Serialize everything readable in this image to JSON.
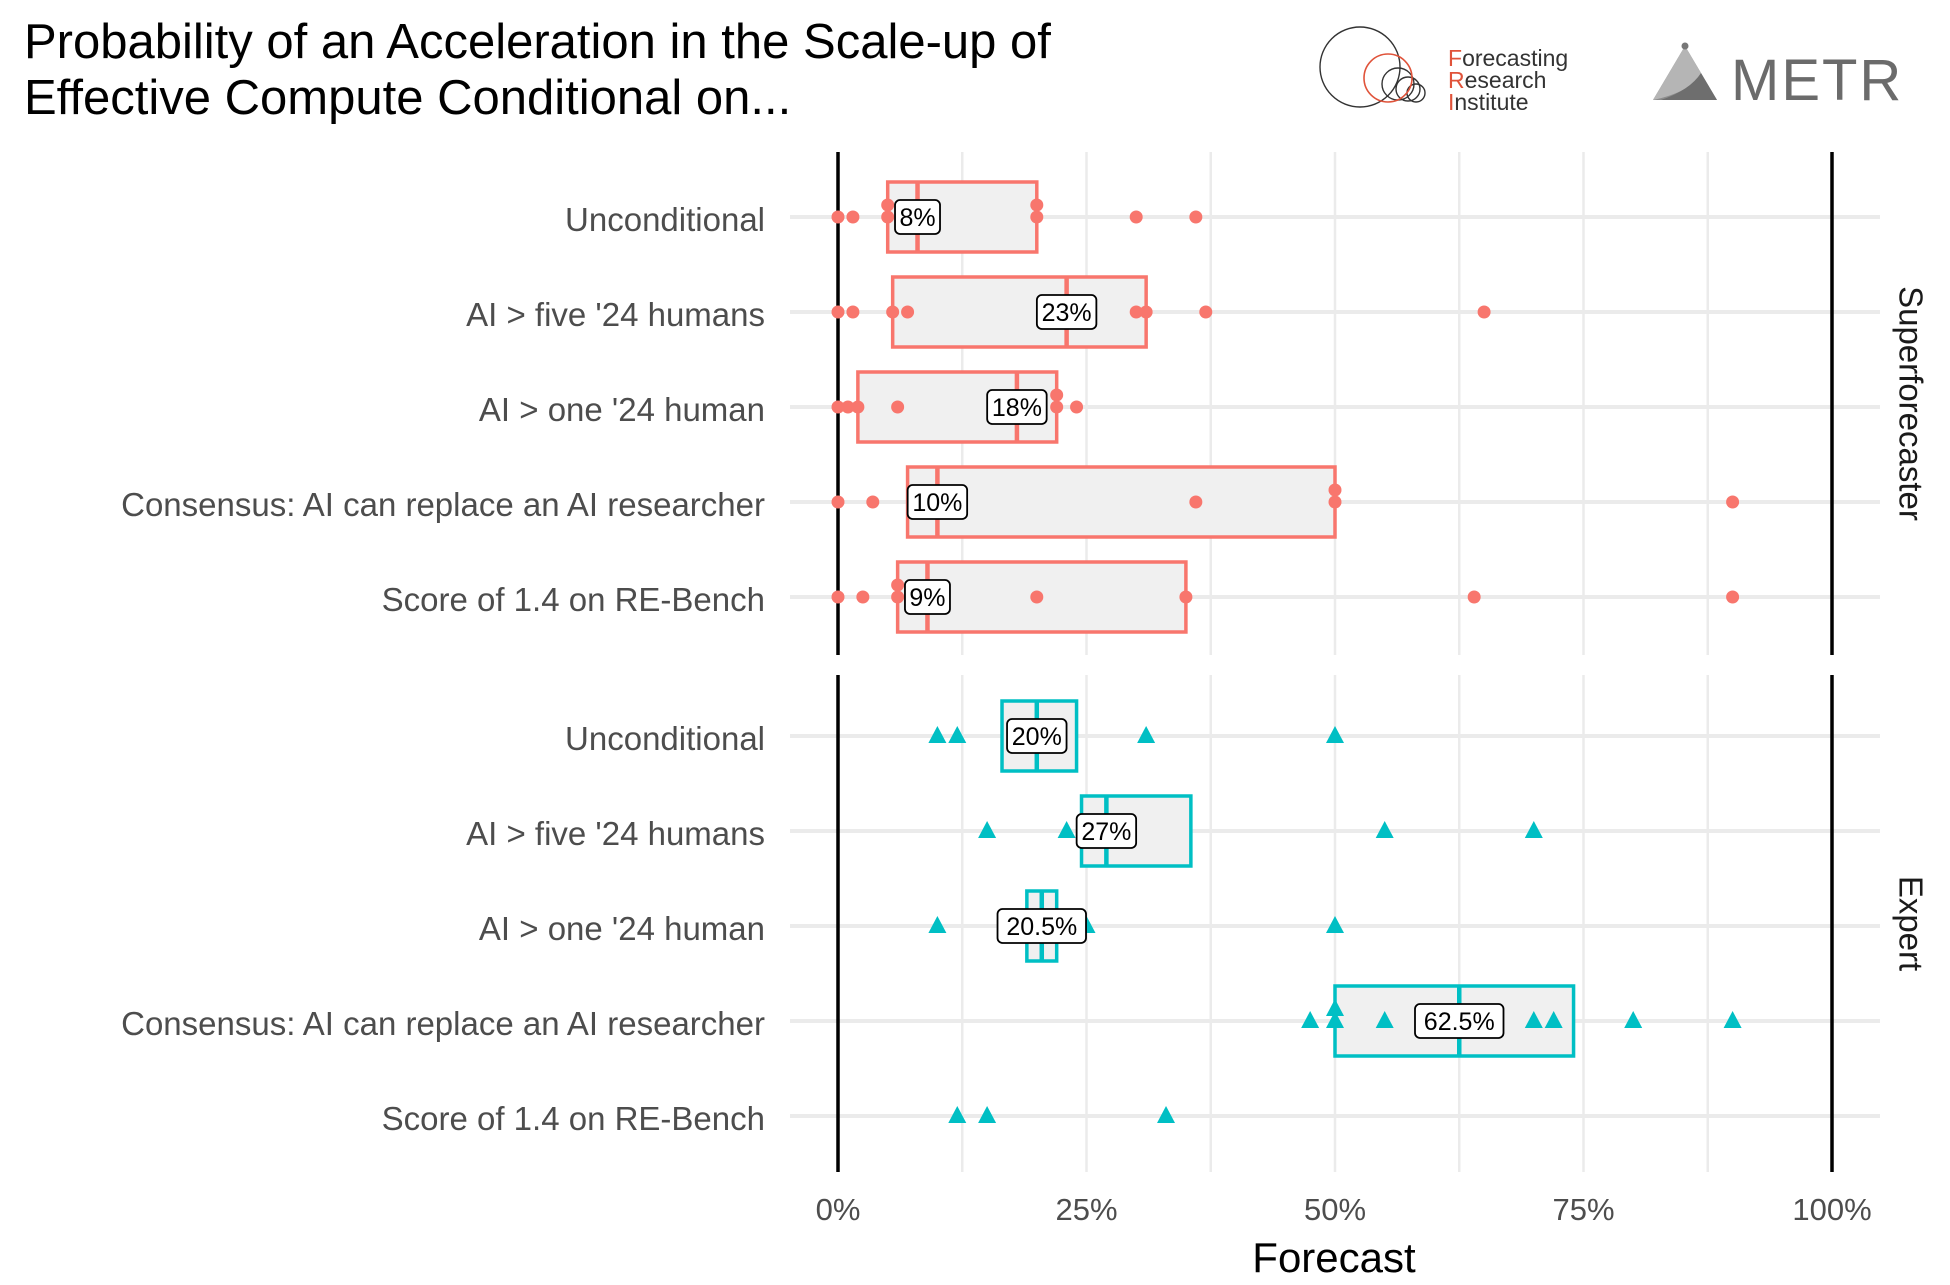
{
  "title": "Probability of an Acceleration in the Scale-up of\nEffective Compute Conditional on...",
  "logos": {
    "fri": {
      "line1_initial": "F",
      "line1_rest": "orecasting",
      "line2_initial": "R",
      "line2_rest": "esearch",
      "line3_initial": "I",
      "line3_rest": "nstitute"
    },
    "metr": {
      "text": "METR"
    }
  },
  "colors": {
    "superforecaster": "#F8766D",
    "expert": "#00BFC4",
    "box_fill": "#F0F0F0",
    "grid": "#EBEBEB",
    "reference_lines": "#000000",
    "text": "#4D4D4D"
  },
  "chart_data": {
    "type": "box",
    "xlabel": "Forecast",
    "xlim": [
      0,
      100
    ],
    "x_ticks": [
      0,
      25,
      50,
      75,
      100
    ],
    "x_tick_labels": [
      "0%",
      "25%",
      "50%",
      "75%",
      "100%"
    ],
    "reference_lines": [
      0,
      100
    ],
    "grid": true,
    "categories": [
      "Unconditional",
      "AI > five '24 humans",
      "AI > one '24 human",
      "Consensus: AI can replace an AI researcher",
      "Score of 1.4 on RE-Bench"
    ],
    "facets": [
      {
        "name": "Superforecaster",
        "marker": "circle",
        "rows": [
          {
            "category": "Unconditional",
            "q1": 5,
            "median": 8,
            "q3": 20,
            "label": "8%",
            "points": [
              0,
              1.5,
              5,
              5,
              20,
              20,
              30,
              36
            ]
          },
          {
            "category": "AI > five '24 humans",
            "q1": 5.5,
            "median": 23,
            "q3": 31,
            "label": "23%",
            "points": [
              0,
              1.5,
              5.5,
              7,
              30,
              31,
              37,
              65
            ]
          },
          {
            "category": "AI > one '24 human",
            "q1": 2,
            "median": 18,
            "q3": 22,
            "label": "18%",
            "points": [
              0,
              1,
              2,
              6,
              22,
              22,
              24
            ]
          },
          {
            "category": "Consensus: AI can replace an AI researcher",
            "q1": 7,
            "median": 10,
            "q3": 50,
            "label": "10%",
            "points": [
              0,
              3.5,
              10,
              36,
              50,
              50,
              90
            ]
          },
          {
            "category": "Score of 1.4 on RE-Bench",
            "q1": 6,
            "median": 9,
            "q3": 35,
            "label": "9%",
            "points": [
              0,
              2.5,
              6,
              6,
              20,
              35,
              64,
              90
            ]
          }
        ]
      },
      {
        "name": "Expert",
        "marker": "triangle",
        "rows": [
          {
            "category": "Unconditional",
            "q1": 16.5,
            "median": 20,
            "q3": 24,
            "label": "20%",
            "points": [
              10,
              12,
              31,
              50
            ]
          },
          {
            "category": "AI > five '24 humans",
            "q1": 24.5,
            "median": 27,
            "q3": 35.5,
            "label": "27%",
            "points": [
              15,
              23,
              26,
              29,
              55,
              70
            ]
          },
          {
            "category": "AI > one '24 human",
            "q1": 19,
            "median": 20.5,
            "q3": 22,
            "label": "20.5%",
            "points": [
              10,
              19.5,
              20.5,
              21,
              25,
              50
            ]
          },
          {
            "category": "Consensus: AI can replace an AI researcher",
            "q1": 50,
            "median": 62.5,
            "q3": 74,
            "label": "62.5%",
            "points": [
              47.5,
              50,
              50,
              55,
              70,
              72,
              80,
              90
            ]
          },
          {
            "category": "Score of 1.4 on RE-Bench",
            "q1": null,
            "median": null,
            "q3": null,
            "label": "",
            "points": [
              12,
              15,
              33
            ]
          }
        ]
      }
    ]
  }
}
